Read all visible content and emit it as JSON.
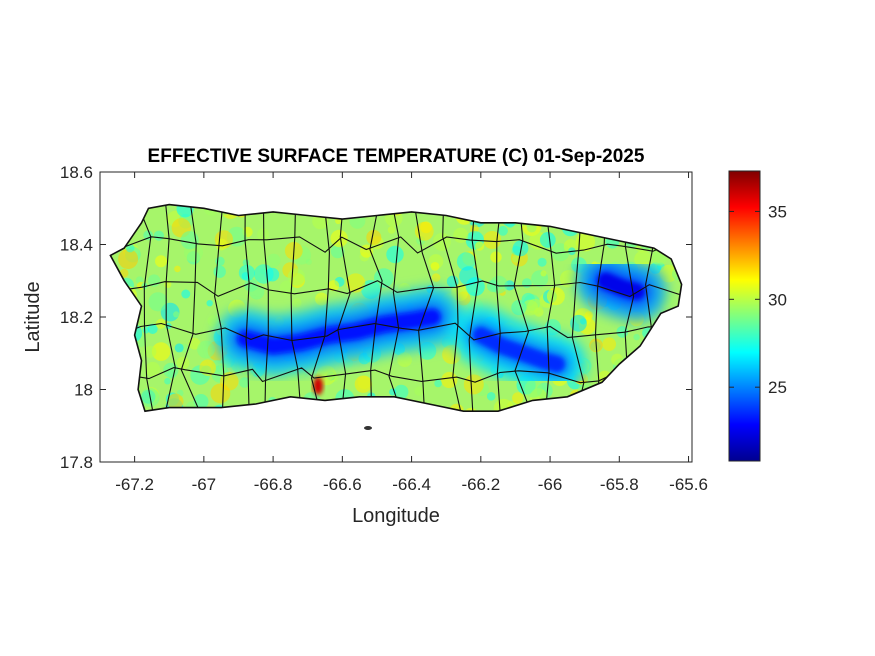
{
  "figure": {
    "title": "EFFECTIVE SURFACE TEMPERATURE (C) 01-Sep-2025"
  },
  "chart_data": {
    "type": "heatmap",
    "title": "EFFECTIVE SURFACE TEMPERATURE (C) 01-Sep-2025",
    "xlabel": "Longitude",
    "ylabel": "Latitude",
    "xlim": [
      -67.3,
      -65.59
    ],
    "ylim": [
      17.8,
      18.6
    ],
    "xticks": [
      -67.2,
      -67,
      -66.8,
      -66.6,
      -66.4,
      -66.2,
      -66,
      -65.8,
      -65.6
    ],
    "xtick_labels": [
      "-67.2",
      "-67",
      "-66.8",
      "-66.6",
      "-66.4",
      "-66.2",
      "-66",
      "-65.8",
      "-65.6"
    ],
    "yticks": [
      17.8,
      18,
      18.2,
      18.4,
      18.6
    ],
    "ytick_labels": [
      "17.8",
      "18",
      "18.2",
      "18.4",
      "18.6"
    ],
    "colormap": "jet",
    "colorbar": {
      "range": [
        20.8,
        37.3
      ],
      "ticks": [
        25,
        30,
        35
      ],
      "tick_labels": [
        "25",
        "30",
        "35"
      ],
      "placement": "right"
    },
    "coastline": [
      [
        -67.27,
        18.37
      ],
      [
        -67.23,
        18.39
      ],
      [
        -67.18,
        18.46
      ],
      [
        -67.16,
        18.5
      ],
      [
        -67.1,
        18.51
      ],
      [
        -67.0,
        18.5
      ],
      [
        -66.9,
        18.48
      ],
      [
        -66.8,
        18.49
      ],
      [
        -66.7,
        18.48
      ],
      [
        -66.6,
        18.47
      ],
      [
        -66.5,
        18.48
      ],
      [
        -66.4,
        18.49
      ],
      [
        -66.3,
        18.48
      ],
      [
        -66.2,
        18.46
      ],
      [
        -66.1,
        18.46
      ],
      [
        -66.0,
        18.45
      ],
      [
        -65.9,
        18.43
      ],
      [
        -65.8,
        18.41
      ],
      [
        -65.7,
        18.39
      ],
      [
        -65.65,
        18.36
      ],
      [
        -65.62,
        18.29
      ],
      [
        -65.63,
        18.23
      ],
      [
        -65.68,
        18.21
      ],
      [
        -65.74,
        18.12
      ],
      [
        -65.8,
        18.07
      ],
      [
        -65.85,
        18.02
      ],
      [
        -65.95,
        17.98
      ],
      [
        -66.05,
        17.97
      ],
      [
        -66.15,
        17.94
      ],
      [
        -66.25,
        17.94
      ],
      [
        -66.35,
        17.96
      ],
      [
        -66.45,
        17.98
      ],
      [
        -66.55,
        17.98
      ],
      [
        -66.65,
        17.97
      ],
      [
        -66.75,
        17.98
      ],
      [
        -66.85,
        17.96
      ],
      [
        -66.95,
        17.95
      ],
      [
        -67.05,
        17.95
      ],
      [
        -67.1,
        17.95
      ],
      [
        -67.17,
        17.94
      ],
      [
        -67.19,
        18.0
      ],
      [
        -67.18,
        18.08
      ],
      [
        -67.2,
        18.15
      ],
      [
        -67.18,
        18.23
      ],
      [
        -67.23,
        18.3
      ],
      [
        -67.27,
        18.37
      ]
    ],
    "cool_ridges": [
      {
        "points": [
          [
            -66.88,
            18.14
          ],
          [
            -66.8,
            18.12
          ],
          [
            -66.72,
            18.13
          ],
          [
            -66.64,
            18.15
          ],
          [
            -66.56,
            18.16
          ],
          [
            -66.48,
            18.18
          ],
          [
            -66.4,
            18.19
          ],
          [
            -66.34,
            18.2
          ]
        ],
        "core_temp": 23
      },
      {
        "points": [
          [
            -66.2,
            18.15
          ],
          [
            -66.14,
            18.12
          ],
          [
            -66.08,
            18.1
          ],
          [
            -66.02,
            18.08
          ],
          [
            -65.98,
            18.07
          ]
        ],
        "core_temp": 23.5
      },
      {
        "points": [
          [
            -65.84,
            18.3
          ],
          [
            -65.79,
            18.28
          ],
          [
            -65.75,
            18.27
          ]
        ],
        "core_temp": 22.5
      }
    ],
    "hot_spots": [
      {
        "lon": -66.67,
        "lat": 18.01,
        "temp": 36
      }
    ]
  }
}
